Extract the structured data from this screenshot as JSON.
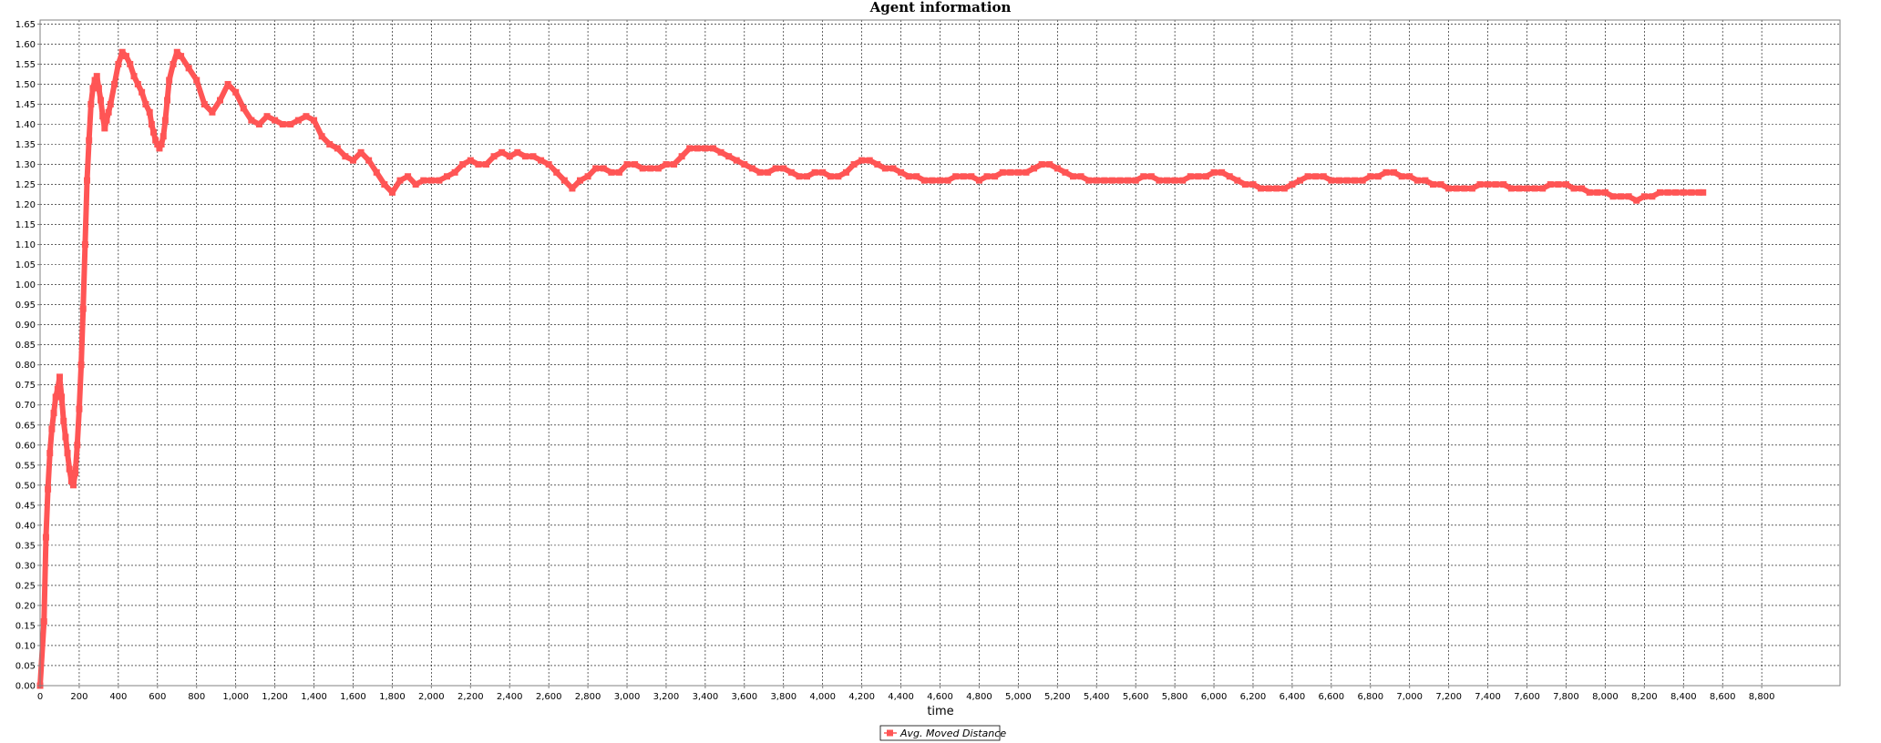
{
  "chart_data": {
    "type": "line",
    "title": "Agent information",
    "xlabel": "time",
    "ylabel": "",
    "xlim": [
      0,
      9200
    ],
    "ylim": [
      0,
      1.66
    ],
    "x_ticks": [
      "0",
      "200",
      "400",
      "600",
      "800",
      "1,000",
      "1,200",
      "1,400",
      "1,600",
      "1,800",
      "2,000",
      "2,200",
      "2,400",
      "2,600",
      "2,800",
      "3,000",
      "3,200",
      "3,400",
      "3,600",
      "3,800",
      "4,000",
      "4,200",
      "4,400",
      "4,600",
      "4,800",
      "5,000",
      "5,200",
      "5,400",
      "5,600",
      "5,800",
      "6,000",
      "6,200",
      "6,400",
      "6,600",
      "6,800",
      "7,000",
      "7,200",
      "7,400",
      "7,600",
      "7,800",
      "8,000",
      "8,200",
      "8,400",
      "8,600",
      "8,800"
    ],
    "y_ticks": [
      "0.00",
      "0.05",
      "0.10",
      "0.15",
      "0.20",
      "0.25",
      "0.30",
      "0.35",
      "0.40",
      "0.45",
      "0.50",
      "0.55",
      "0.60",
      "0.65",
      "0.70",
      "0.75",
      "0.80",
      "0.85",
      "0.90",
      "0.95",
      "1.00",
      "1.05",
      "1.10",
      "1.15",
      "1.20",
      "1.25",
      "1.30",
      "1.35",
      "1.40",
      "1.45",
      "1.50",
      "1.55",
      "1.60",
      "1.65"
    ],
    "grid": true,
    "legend_position": "bottom-center",
    "series": [
      {
        "name": "Avg. Moved Distance",
        "color": "#ff5555",
        "marker": "square",
        "points": [
          [
            0,
            0.0
          ],
          [
            20,
            0.16
          ],
          [
            30,
            0.37
          ],
          [
            40,
            0.49
          ],
          [
            50,
            0.58
          ],
          [
            60,
            0.64
          ],
          [
            70,
            0.68
          ],
          [
            80,
            0.72
          ],
          [
            90,
            0.74
          ],
          [
            100,
            0.77
          ],
          [
            110,
            0.72
          ],
          [
            120,
            0.66
          ],
          [
            130,
            0.62
          ],
          [
            140,
            0.58
          ],
          [
            150,
            0.54
          ],
          [
            160,
            0.51
          ],
          [
            170,
            0.5
          ],
          [
            180,
            0.53
          ],
          [
            190,
            0.6
          ],
          [
            200,
            0.69
          ],
          [
            210,
            0.8
          ],
          [
            220,
            0.94
          ],
          [
            230,
            1.1
          ],
          [
            240,
            1.26
          ],
          [
            250,
            1.36
          ],
          [
            260,
            1.45
          ],
          [
            270,
            1.49
          ],
          [
            280,
            1.51
          ],
          [
            290,
            1.52
          ],
          [
            300,
            1.49
          ],
          [
            310,
            1.46
          ],
          [
            320,
            1.42
          ],
          [
            330,
            1.39
          ],
          [
            340,
            1.41
          ],
          [
            350,
            1.43
          ],
          [
            360,
            1.45
          ],
          [
            380,
            1.5
          ],
          [
            400,
            1.55
          ],
          [
            420,
            1.58
          ],
          [
            440,
            1.57
          ],
          [
            460,
            1.55
          ],
          [
            480,
            1.52
          ],
          [
            500,
            1.5
          ],
          [
            520,
            1.48
          ],
          [
            540,
            1.45
          ],
          [
            560,
            1.43
          ],
          [
            570,
            1.4
          ],
          [
            580,
            1.38
          ],
          [
            590,
            1.36
          ],
          [
            600,
            1.35
          ],
          [
            610,
            1.34
          ],
          [
            620,
            1.35
          ],
          [
            630,
            1.37
          ],
          [
            640,
            1.41
          ],
          [
            650,
            1.46
          ],
          [
            660,
            1.51
          ],
          [
            680,
            1.55
          ],
          [
            700,
            1.58
          ],
          [
            720,
            1.57
          ],
          [
            760,
            1.54
          ],
          [
            800,
            1.51
          ],
          [
            840,
            1.45
          ],
          [
            880,
            1.43
          ],
          [
            920,
            1.46
          ],
          [
            960,
            1.5
          ],
          [
            1000,
            1.48
          ],
          [
            1040,
            1.44
          ],
          [
            1080,
            1.41
          ],
          [
            1120,
            1.4
          ],
          [
            1160,
            1.42
          ],
          [
            1200,
            1.41
          ],
          [
            1240,
            1.4
          ],
          [
            1280,
            1.4
          ],
          [
            1320,
            1.41
          ],
          [
            1360,
            1.42
          ],
          [
            1400,
            1.41
          ],
          [
            1440,
            1.37
          ],
          [
            1480,
            1.35
          ],
          [
            1520,
            1.34
          ],
          [
            1560,
            1.32
          ],
          [
            1600,
            1.31
          ],
          [
            1640,
            1.33
          ],
          [
            1680,
            1.31
          ],
          [
            1720,
            1.28
          ],
          [
            1760,
            1.25
          ],
          [
            1800,
            1.23
          ],
          [
            1840,
            1.26
          ],
          [
            1880,
            1.27
          ],
          [
            1920,
            1.25
          ],
          [
            1960,
            1.26
          ],
          [
            2000,
            1.26
          ],
          [
            2040,
            1.26
          ],
          [
            2080,
            1.27
          ],
          [
            2120,
            1.28
          ],
          [
            2160,
            1.3
          ],
          [
            2200,
            1.31
          ],
          [
            2240,
            1.3
          ],
          [
            2280,
            1.3
          ],
          [
            2320,
            1.32
          ],
          [
            2360,
            1.33
          ],
          [
            2400,
            1.32
          ],
          [
            2440,
            1.33
          ],
          [
            2480,
            1.32
          ],
          [
            2520,
            1.32
          ],
          [
            2560,
            1.31
          ],
          [
            2600,
            1.3
          ],
          [
            2640,
            1.28
          ],
          [
            2680,
            1.26
          ],
          [
            2720,
            1.24
          ],
          [
            2760,
            1.26
          ],
          [
            2800,
            1.27
          ],
          [
            2840,
            1.29
          ],
          [
            2880,
            1.29
          ],
          [
            2920,
            1.28
          ],
          [
            2960,
            1.28
          ],
          [
            3000,
            1.3
          ],
          [
            3040,
            1.3
          ],
          [
            3080,
            1.29
          ],
          [
            3120,
            1.29
          ],
          [
            3160,
            1.29
          ],
          [
            3200,
            1.3
          ],
          [
            3240,
            1.3
          ],
          [
            3280,
            1.32
          ],
          [
            3320,
            1.34
          ],
          [
            3360,
            1.34
          ],
          [
            3400,
            1.34
          ],
          [
            3440,
            1.34
          ],
          [
            3480,
            1.33
          ],
          [
            3520,
            1.32
          ],
          [
            3560,
            1.31
          ],
          [
            3600,
            1.3
          ],
          [
            3640,
            1.29
          ],
          [
            3680,
            1.28
          ],
          [
            3720,
            1.28
          ],
          [
            3760,
            1.29
          ],
          [
            3800,
            1.29
          ],
          [
            3840,
            1.28
          ],
          [
            3880,
            1.27
          ],
          [
            3920,
            1.27
          ],
          [
            3960,
            1.28
          ],
          [
            4000,
            1.28
          ],
          [
            4040,
            1.27
          ],
          [
            4080,
            1.27
          ],
          [
            4120,
            1.28
          ],
          [
            4160,
            1.3
          ],
          [
            4200,
            1.31
          ],
          [
            4240,
            1.31
          ],
          [
            4280,
            1.3
          ],
          [
            4320,
            1.29
          ],
          [
            4360,
            1.29
          ],
          [
            4400,
            1.28
          ],
          [
            4440,
            1.27
          ],
          [
            4480,
            1.27
          ],
          [
            4520,
            1.26
          ],
          [
            4560,
            1.26
          ],
          [
            4600,
            1.26
          ],
          [
            4640,
            1.26
          ],
          [
            4680,
            1.27
          ],
          [
            4720,
            1.27
          ],
          [
            4760,
            1.27
          ],
          [
            4800,
            1.26
          ],
          [
            4840,
            1.27
          ],
          [
            4880,
            1.27
          ],
          [
            4920,
            1.28
          ],
          [
            4960,
            1.28
          ],
          [
            5000,
            1.28
          ],
          [
            5040,
            1.28
          ],
          [
            5080,
            1.29
          ],
          [
            5120,
            1.3
          ],
          [
            5160,
            1.3
          ],
          [
            5200,
            1.29
          ],
          [
            5240,
            1.28
          ],
          [
            5280,
            1.27
          ],
          [
            5320,
            1.27
          ],
          [
            5360,
            1.26
          ],
          [
            5400,
            1.26
          ],
          [
            5440,
            1.26
          ],
          [
            5480,
            1.26
          ],
          [
            5520,
            1.26
          ],
          [
            5560,
            1.26
          ],
          [
            5600,
            1.26
          ],
          [
            5640,
            1.27
          ],
          [
            5680,
            1.27
          ],
          [
            5720,
            1.26
          ],
          [
            5760,
            1.26
          ],
          [
            5800,
            1.26
          ],
          [
            5840,
            1.26
          ],
          [
            5880,
            1.27
          ],
          [
            5920,
            1.27
          ],
          [
            5960,
            1.27
          ],
          [
            6000,
            1.28
          ],
          [
            6040,
            1.28
          ],
          [
            6080,
            1.27
          ],
          [
            6120,
            1.26
          ],
          [
            6160,
            1.25
          ],
          [
            6200,
            1.25
          ],
          [
            6240,
            1.24
          ],
          [
            6280,
            1.24
          ],
          [
            6320,
            1.24
          ],
          [
            6360,
            1.24
          ],
          [
            6400,
            1.25
          ],
          [
            6440,
            1.26
          ],
          [
            6480,
            1.27
          ],
          [
            6520,
            1.27
          ],
          [
            6560,
            1.27
          ],
          [
            6600,
            1.26
          ],
          [
            6640,
            1.26
          ],
          [
            6680,
            1.26
          ],
          [
            6720,
            1.26
          ],
          [
            6760,
            1.26
          ],
          [
            6800,
            1.27
          ],
          [
            6840,
            1.27
          ],
          [
            6880,
            1.28
          ],
          [
            6920,
            1.28
          ],
          [
            6960,
            1.27
          ],
          [
            7000,
            1.27
          ],
          [
            7040,
            1.26
          ],
          [
            7080,
            1.26
          ],
          [
            7120,
            1.25
          ],
          [
            7160,
            1.25
          ],
          [
            7200,
            1.24
          ],
          [
            7240,
            1.24
          ],
          [
            7280,
            1.24
          ],
          [
            7320,
            1.24
          ],
          [
            7360,
            1.25
          ],
          [
            7400,
            1.25
          ],
          [
            7440,
            1.25
          ],
          [
            7480,
            1.25
          ],
          [
            7520,
            1.24
          ],
          [
            7560,
            1.24
          ],
          [
            7600,
            1.24
          ],
          [
            7640,
            1.24
          ],
          [
            7680,
            1.24
          ],
          [
            7720,
            1.25
          ],
          [
            7760,
            1.25
          ],
          [
            7800,
            1.25
          ],
          [
            7840,
            1.24
          ],
          [
            7880,
            1.24
          ],
          [
            7920,
            1.23
          ],
          [
            7960,
            1.23
          ],
          [
            8000,
            1.23
          ],
          [
            8040,
            1.22
          ],
          [
            8080,
            1.22
          ],
          [
            8120,
            1.22
          ],
          [
            8160,
            1.21
          ],
          [
            8200,
            1.22
          ],
          [
            8240,
            1.22
          ],
          [
            8280,
            1.23
          ],
          [
            8320,
            1.23
          ],
          [
            8360,
            1.23
          ],
          [
            8400,
            1.23
          ],
          [
            8440,
            1.23
          ],
          [
            8480,
            1.23
          ],
          [
            8500,
            1.23
          ]
        ]
      }
    ]
  }
}
